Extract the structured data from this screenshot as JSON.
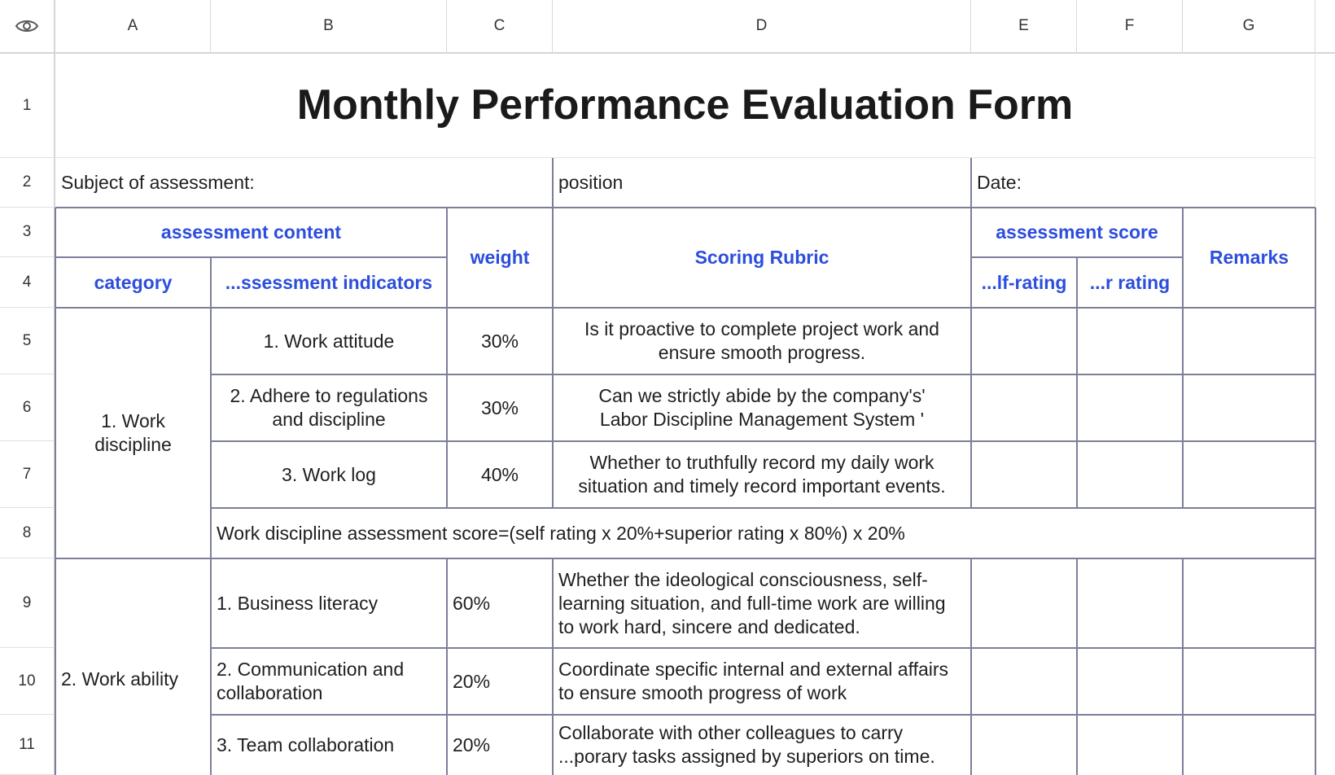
{
  "column_headers": [
    "A",
    "B",
    "C",
    "D",
    "E",
    "F",
    "G"
  ],
  "row_numbers": [
    "1",
    "2",
    "3",
    "4",
    "5",
    "6",
    "7",
    "8",
    "9",
    "10",
    "11"
  ],
  "title": "Monthly Performance Evaluation Form",
  "info": {
    "subject": "Subject of assessment:",
    "position": "position",
    "date": "Date:"
  },
  "header": {
    "assessment_content": "assessment content",
    "weight": "weight",
    "scoring_rubric": "Scoring Rubric",
    "assessment_score": "assessment score",
    "remarks": "Remarks",
    "category": "category",
    "indicators": "...ssessment indicators",
    "self_rating": "...lf-rating",
    "superior_rating": "...r rating"
  },
  "groups": [
    {
      "category": "1. Work discipline"
    },
    {
      "category": "2. Work ability"
    }
  ],
  "rows": [
    {
      "indicator": "1. Work attitude",
      "weight": "30%",
      "rubric": "Is it proactive to complete project work and ensure smooth progress."
    },
    {
      "indicator": "2. Adhere to regulations and discipline",
      "weight": "30%",
      "rubric": "Can we strictly abide by the company's' Labor Discipline Management System '"
    },
    {
      "indicator": "3. Work log",
      "weight": "40%",
      "rubric": "Whether to truthfully record my daily work situation and timely record important events."
    },
    {
      "indicator": "1. Business literacy",
      "weight": "60%",
      "rubric": "Whether the ideological consciousness, self-learning situation, and full-time work are willing to work hard, sincere and dedicated."
    },
    {
      "indicator": "2. Communication and collaboration",
      "weight": "20%",
      "rubric": "Coordinate specific internal and external affairs to ensure smooth progress of work"
    },
    {
      "indicator": "3. Team collaboration",
      "weight": "20%",
      "rubric": "Collaborate with other colleagues to carry ...porary tasks assigned by superiors on time."
    }
  ],
  "discipline_score": "Work discipline assessment score=(self rating x 20%+superior rating x 80%) x 20%",
  "colors": {
    "header_blue": "#2c4ddd",
    "table_border": "#7b7f9a",
    "grid": "#e3e3e3"
  },
  "icons": {
    "corner": "eye-icon"
  }
}
